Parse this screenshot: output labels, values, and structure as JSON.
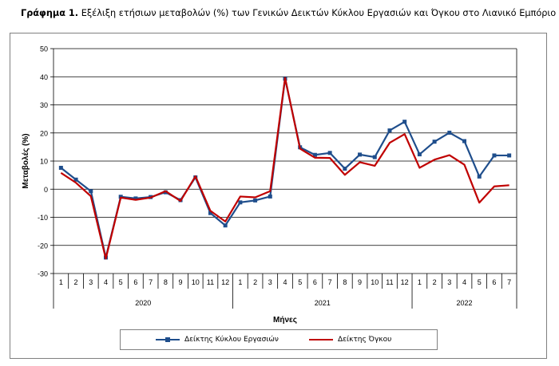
{
  "title": {
    "prefix": "Γράφημα 1.",
    "text": "Εξέλιξη ετήσιων μεταβολών (%) των Γενικών Δεικτών Κύκλου Εργασιών και Όγκου στο Λιανικό Εμπόριο"
  },
  "chart_data": {
    "type": "line",
    "xlabel": "Μήνες",
    "ylabel": "Μεταβολές (%)",
    "ylim": [
      -30,
      50
    ],
    "yticks": [
      -30,
      -20,
      -10,
      0,
      10,
      20,
      30,
      40,
      50
    ],
    "grid": true,
    "legend_position": "bottom",
    "categories": [
      "1",
      "2",
      "3",
      "4",
      "5",
      "6",
      "7",
      "8",
      "9",
      "10",
      "11",
      "12",
      "1",
      "2",
      "3",
      "4",
      "5",
      "6",
      "7",
      "8",
      "9",
      "10",
      "11",
      "12",
      "1",
      "2",
      "3",
      "4",
      "5",
      "6",
      "7"
    ],
    "groups": [
      {
        "label": "2020",
        "count": 12
      },
      {
        "label": "2021",
        "count": 12
      },
      {
        "label": "2022",
        "count": 7
      }
    ],
    "series": [
      {
        "name": "Δείκτης Κύκλου Εργασιών",
        "color": "#1f4e8c",
        "marker": "square",
        "values": [
          7.6,
          3.4,
          -0.7,
          -24.3,
          -2.7,
          -3.3,
          -2.8,
          -1.1,
          -3.9,
          4.2,
          -8.5,
          -12.9,
          -4.7,
          -4.0,
          -2.6,
          39.3,
          14.9,
          12.2,
          12.9,
          7.3,
          12.3,
          11.4,
          20.9,
          24.0,
          12.4,
          16.9,
          20.1,
          17.1,
          4.5,
          12.0,
          12.0
        ]
      },
      {
        "name": "Δείκτης Όγκου",
        "color": "#c00000",
        "marker": "none",
        "values": [
          5.8,
          2.3,
          -2.5,
          -24.7,
          -3.0,
          -3.8,
          -3.0,
          -0.7,
          -4.2,
          4.6,
          -7.7,
          -11.5,
          -2.6,
          -2.9,
          -0.7,
          39.6,
          14.4,
          11.2,
          11.1,
          5.1,
          9.6,
          8.3,
          16.5,
          19.6,
          7.6,
          10.5,
          12.1,
          8.7,
          -4.8,
          1.0,
          1.4
        ]
      }
    ]
  }
}
